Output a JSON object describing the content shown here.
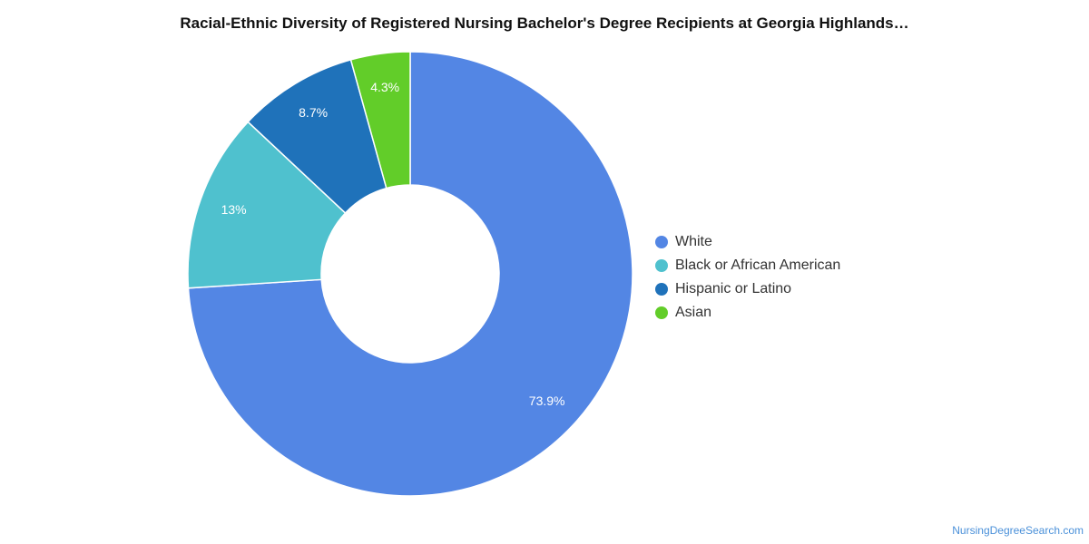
{
  "chart_data": {
    "type": "pie",
    "variant": "donut",
    "title": "Racial-Ethnic Diversity of Registered Nursing Bachelor's Degree Recipients at Georgia Highlands…",
    "categories": [
      "White",
      "Black or African American",
      "Hispanic or Latino",
      "Asian"
    ],
    "values": [
      73.9,
      13,
      8.7,
      4.3
    ],
    "value_labels": [
      "73.9%",
      "13%",
      "8.7%",
      "4.3%"
    ],
    "colors": [
      "#5386E4",
      "#4FC1CE",
      "#1F72BA",
      "#62CD29"
    ],
    "legend_position": "right"
  },
  "source": "NursingDegreeSearch.com"
}
